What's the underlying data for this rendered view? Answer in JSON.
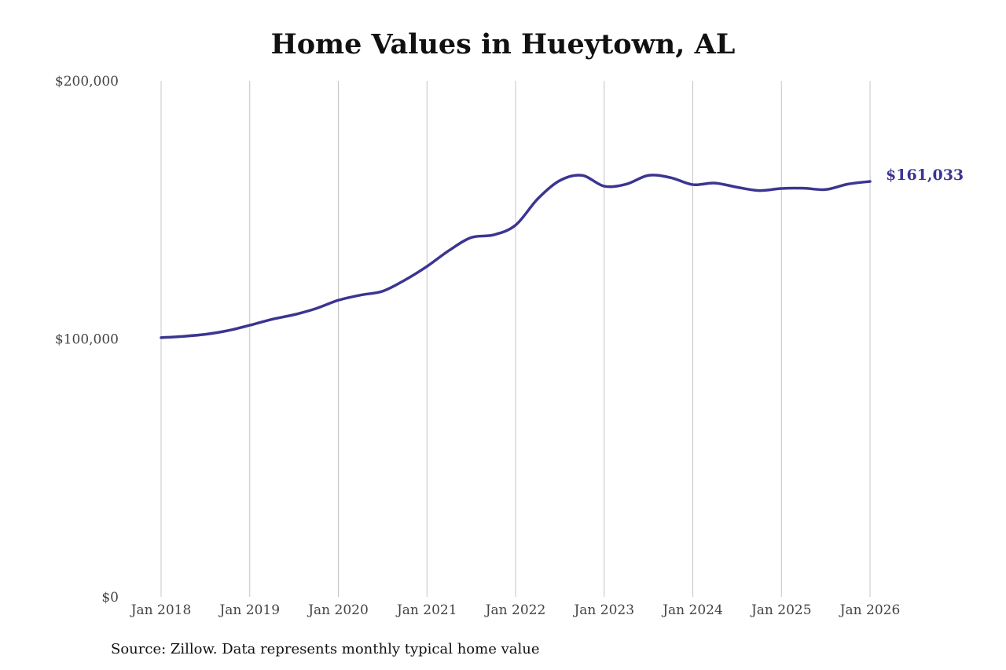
{
  "chart_data": {
    "type": "line",
    "title": "Home Values in Hueytown, AL",
    "xlabel": "",
    "ylabel": "",
    "ylim": [
      0,
      200000
    ],
    "yticks": [
      0,
      100000,
      200000
    ],
    "ytick_labels": [
      "$0",
      "$100,000",
      "$200,000"
    ],
    "xticks": [
      "2018-01",
      "2019-01",
      "2020-01",
      "2021-01",
      "2022-01",
      "2023-01",
      "2024-01",
      "2025-01",
      "2026-01"
    ],
    "xtick_labels": [
      "Jan 2018",
      "Jan 2019",
      "Jan 2020",
      "Jan 2021",
      "Jan 2022",
      "Jan 2023",
      "Jan 2024",
      "Jan 2025",
      "Jan 2026"
    ],
    "grid": "vertical",
    "line_color": "#3b3591",
    "series": [
      {
        "x": [
          "2018-01",
          "2018-04",
          "2018-07",
          "2018-10",
          "2019-01",
          "2019-04",
          "2019-07",
          "2019-10",
          "2020-01",
          "2020-04",
          "2020-07",
          "2020-10",
          "2021-01",
          "2021-04",
          "2021-07",
          "2021-10",
          "2022-01",
          "2022-04",
          "2022-07",
          "2022-10",
          "2023-01",
          "2023-04",
          "2023-07",
          "2023-10",
          "2024-01",
          "2024-04",
          "2024-07",
          "2024-10",
          "2025-01",
          "2025-04",
          "2025-07",
          "2025-10",
          "2026-01"
        ],
        "values": [
          100500,
          101000,
          101800,
          103200,
          105300,
          107600,
          109400,
          111800,
          115000,
          117000,
          118500,
          122800,
          128100,
          134300,
          139300,
          140300,
          144100,
          154300,
          161400,
          163400,
          159200,
          160000,
          163400,
          162500,
          159800,
          160400,
          158800,
          157500,
          158300,
          158400,
          157900,
          160000,
          161033
        ]
      }
    ],
    "end_label": "$161,033"
  },
  "source": "Source: Zillow. Data represents monthly typical home value"
}
